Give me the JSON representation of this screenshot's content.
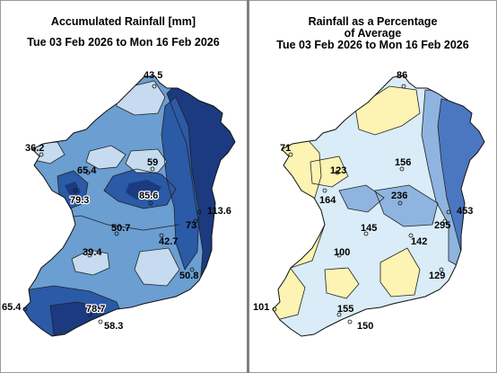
{
  "left_panel": {
    "title_line1": "Accumulated Rainfall [mm]",
    "title_line2": "Tue 03 Feb 2026 to Mon 16 Feb 2026",
    "stations": [
      {
        "id": "malin",
        "value": "43.5"
      },
      {
        "id": "belmullet",
        "value": "36.2"
      },
      {
        "id": "knock",
        "value": "65.4"
      },
      {
        "id": "clones",
        "value": "59"
      },
      {
        "id": "newport",
        "value": "79.3"
      },
      {
        "id": "mullingar",
        "value": "85.6"
      },
      {
        "id": "dublin",
        "value": "113.6"
      },
      {
        "id": "dublin2",
        "value": "73"
      },
      {
        "id": "athenry",
        "value": "50.7"
      },
      {
        "id": "shannon",
        "value": "39.4"
      },
      {
        "id": "kilkenny",
        "value": "42.7"
      },
      {
        "id": "wexford",
        "value": "50.8"
      },
      {
        "id": "valentia",
        "value": "65.4"
      },
      {
        "id": "cork",
        "value": "78.7"
      },
      {
        "id": "roches",
        "value": "58.3"
      }
    ]
  },
  "right_panel": {
    "title_line1": "Rainfall as a Percentage",
    "title_line2": "of Average",
    "title_line3": "Tue 03 Feb 2026 to Mon 16 Feb 2026",
    "stations": [
      {
        "id": "malin",
        "value": "86"
      },
      {
        "id": "belmullet",
        "value": "71"
      },
      {
        "id": "knock",
        "value": "123"
      },
      {
        "id": "clones",
        "value": "156"
      },
      {
        "id": "newport",
        "value": "164"
      },
      {
        "id": "mullingar",
        "value": "236"
      },
      {
        "id": "dublin",
        "value": "453"
      },
      {
        "id": "dublin2",
        "value": "295"
      },
      {
        "id": "athenry",
        "value": "145"
      },
      {
        "id": "shannon",
        "value": "100"
      },
      {
        "id": "kilkenny",
        "value": "142"
      },
      {
        "id": "wexford",
        "value": "129"
      },
      {
        "id": "valentia",
        "value": "101"
      },
      {
        "id": "cork",
        "value": "155"
      },
      {
        "id": "roches",
        "value": "150"
      }
    ]
  },
  "colors": {
    "rain_light": "#c6dbef",
    "rain_mid": "#6b9ed1",
    "rain_dark": "#2b5aa6",
    "rain_darkest": "#1b3a80",
    "pct_low": "#fdf3b2",
    "pct_normal": "#d9ecf7",
    "pct_high": "#8fb4df",
    "pct_very_high": "#4b77c1"
  }
}
